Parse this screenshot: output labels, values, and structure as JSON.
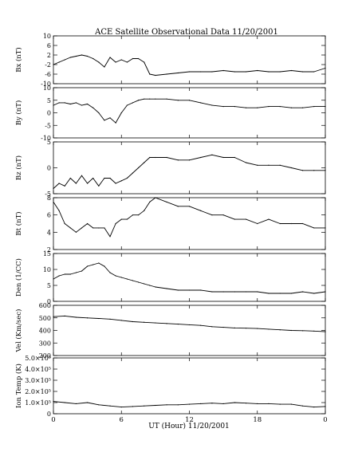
{
  "title": "ACE Satellite Observational Data   11/20/2001",
  "xlabel": "UT (Hour)   11/20/2001",
  "chart_data": {
    "type": "line",
    "title": "ACE Satellite Observational Data   11/20/2001",
    "xlabel": "UT (Hour)   11/20/2001",
    "x_ticks": [
      "0",
      "6",
      "12",
      "18",
      "0"
    ],
    "xlim": [
      0,
      24
    ],
    "grid": false,
    "panels": [
      {
        "ylabel": "Bx (nT)",
        "ylim": [
          -10,
          10
        ],
        "ytick_values": [
          -10,
          -6,
          -2,
          2,
          6,
          10
        ],
        "ytick_labels": [
          "-10",
          "-6",
          "-2",
          "2",
          "6",
          "10"
        ],
        "series": [
          {
            "x": [
              0,
              0.5,
              1,
              1.5,
              2,
              2.5,
              3,
              3.5,
              4,
              4.5,
              5,
              5.5,
              6,
              6.5,
              7,
              7.5,
              8,
              8.5,
              9,
              10,
              11,
              12,
              13,
              14,
              15,
              16,
              17,
              18,
              19,
              20,
              21,
              22,
              23,
              24
            ],
            "values": [
              -2,
              -1,
              0,
              1,
              1.5,
              2,
              1.5,
              0.5,
              -1,
              -3,
              1,
              -1,
              0,
              -1,
              0.5,
              0.5,
              -1,
              -6,
              -6.5,
              -6,
              -5.5,
              -5,
              -5,
              -5,
              -4.5,
              -5,
              -5,
              -4.5,
              -5,
              -5,
              -4.5,
              -5,
              -5,
              -3.5
            ]
          }
        ]
      },
      {
        "ylabel": "By (nT)",
        "ylim": [
          -10,
          10
        ],
        "ytick_values": [
          -10,
          -5,
          0,
          5,
          10
        ],
        "ytick_labels": [
          "-10",
          "-5",
          "0",
          "5",
          "10"
        ],
        "series": [
          {
            "x": [
              0,
              0.5,
              1,
              1.5,
              2,
              2.5,
              3,
              3.5,
              4,
              4.5,
              5,
              5.5,
              6,
              6.5,
              7,
              7.5,
              8,
              8.5,
              9,
              10,
              11,
              12,
              13,
              14,
              15,
              16,
              17,
              18,
              19,
              20,
              21,
              22,
              23,
              24
            ],
            "values": [
              3,
              4,
              4,
              3.5,
              4,
              3,
              3.5,
              2,
              0,
              -3,
              -2,
              -4,
              0,
              3,
              4,
              5,
              5.5,
              5.5,
              5.5,
              5.5,
              5,
              5,
              4,
              3,
              2.5,
              2.5,
              2,
              2,
              2.5,
              2.5,
              2,
              2,
              2.5,
              2.5
            ]
          }
        ]
      },
      {
        "ylabel": "Bz (nT)",
        "ylim": [
          -5,
          5
        ],
        "ytick_values": [
          -5,
          0,
          5
        ],
        "ytick_labels": [
          "-5",
          "0",
          "5"
        ],
        "series": [
          {
            "x": [
              0,
              0.5,
              1,
              1.5,
              2,
              2.5,
              3,
              3.5,
              4,
              4.5,
              5,
              5.5,
              6,
              6.5,
              7,
              7.5,
              8,
              8.5,
              9,
              10,
              11,
              12,
              13,
              14,
              15,
              16,
              17,
              18,
              19,
              20,
              21,
              22,
              23,
              24
            ],
            "values": [
              -4,
              -3,
              -3.5,
              -2,
              -3,
              -1.5,
              -3,
              -2,
              -3.5,
              -2,
              -2,
              -3,
              -2.5,
              -2,
              -1,
              0,
              1,
              2,
              2,
              2,
              1.5,
              1.5,
              2,
              2.5,
              2,
              2,
              1,
              0.5,
              0.5,
              0.5,
              0,
              -0.5,
              -0.5,
              -0.5
            ]
          }
        ]
      },
      {
        "ylabel": "Bt (nT)",
        "ylim": [
          2,
          8
        ],
        "ytick_values": [
          2,
          4,
          6,
          8
        ],
        "ytick_labels": [
          "2",
          "4",
          "6",
          "8"
        ],
        "series": [
          {
            "x": [
              0,
              0.5,
              1,
              1.5,
              2,
              2.5,
              3,
              3.5,
              4,
              4.5,
              5,
              5.5,
              6,
              6.5,
              7,
              7.5,
              8,
              8.5,
              9,
              10,
              11,
              12,
              13,
              14,
              15,
              16,
              17,
              18,
              19,
              20,
              21,
              22,
              23,
              24
            ],
            "values": [
              7.5,
              6.5,
              5,
              4.5,
              4,
              4.5,
              5,
              4.5,
              4.5,
              4.5,
              3.5,
              5,
              5.5,
              5.5,
              6,
              6,
              6.5,
              7.5,
              8,
              7.5,
              7,
              7,
              6.5,
              6,
              6,
              5.5,
              5.5,
              5,
              5.5,
              5,
              5,
              5,
              4.5,
              4.5
            ]
          }
        ]
      },
      {
        "ylabel": "Den (1/CC)",
        "ylim": [
          0,
          15
        ],
        "ytick_values": [
          0,
          5,
          10,
          15
        ],
        "ytick_labels": [
          "0",
          "5",
          "10",
          "15"
        ],
        "series": [
          {
            "x": [
              0,
              0.5,
              1,
              1.5,
              2,
              2.5,
              3,
              3.5,
              4,
              4.5,
              5,
              5.5,
              6,
              6.5,
              7,
              7.5,
              8,
              8.5,
              9,
              10,
              11,
              12,
              13,
              14,
              15,
              16,
              17,
              18,
              19,
              20,
              21,
              22,
              23,
              24
            ],
            "values": [
              7,
              8,
              8.5,
              8.5,
              9,
              9.5,
              11,
              11.5,
              12,
              11,
              9,
              8,
              7.5,
              7,
              6.5,
              6,
              5.5,
              5,
              4.5,
              4,
              3.5,
              3.5,
              3.5,
              3,
              3,
              3,
              3,
              3,
              2.5,
              2.5,
              2.5,
              3,
              2.5,
              3
            ]
          }
        ]
      },
      {
        "ylabel": "Vel (Km/sec)",
        "ylim": [
          200,
          600
        ],
        "ytick_values": [
          200,
          300,
          400,
          500,
          600
        ],
        "ytick_labels": [
          "200",
          "300",
          "400",
          "500",
          "600"
        ],
        "series": [
          {
            "x": [
              0,
              1,
              2,
              3,
              4,
              5,
              6,
              7,
              8,
              9,
              10,
              11,
              12,
              13,
              14,
              15,
              16,
              17,
              18,
              19,
              20,
              21,
              22,
              23,
              24
            ],
            "values": [
              510,
              515,
              505,
              500,
              495,
              490,
              480,
              470,
              465,
              460,
              455,
              450,
              445,
              440,
              430,
              425,
              420,
              418,
              415,
              410,
              405,
              400,
              398,
              395,
              390
            ]
          }
        ]
      },
      {
        "ylabel": "Ion Temp (K)",
        "ylim": [
          0,
          500000
        ],
        "ytick_values": [
          0,
          100000,
          200000,
          300000,
          400000,
          500000
        ],
        "ytick_labels": [
          "0",
          "1.0×10⁵",
          "2.0×10⁵",
          "3.0×10⁵",
          "4.0×10⁵",
          "5.0×10⁵"
        ],
        "series": [
          {
            "x": [
              0,
              1,
              2,
              3,
              4,
              5,
              6,
              7,
              8,
              9,
              10,
              11,
              12,
              13,
              14,
              15,
              16,
              17,
              18,
              19,
              20,
              21,
              22,
              23,
              24
            ],
            "values": [
              110000,
              100000,
              90000,
              100000,
              80000,
              70000,
              60000,
              65000,
              70000,
              75000,
              80000,
              80000,
              85000,
              90000,
              95000,
              90000,
              100000,
              95000,
              90000,
              90000,
              85000,
              85000,
              70000,
              60000,
              65000
            ]
          }
        ]
      }
    ]
  }
}
